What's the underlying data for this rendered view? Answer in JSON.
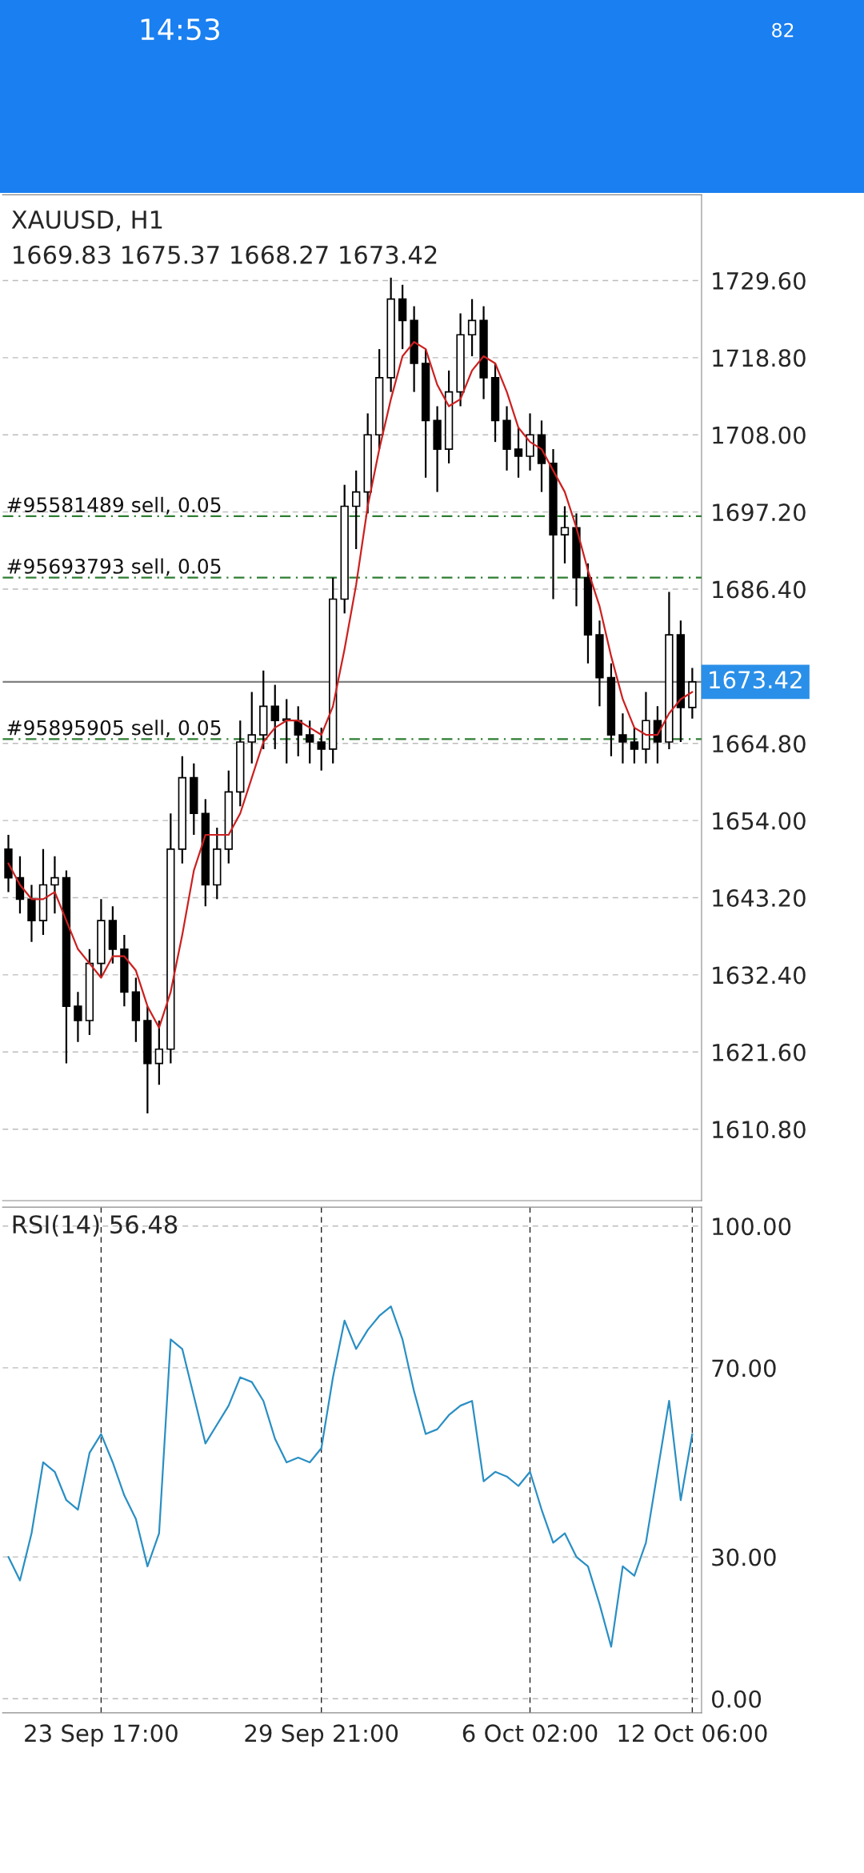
{
  "chart_data": [
    {
      "type": "candlestick",
      "title": "XAUUSD, H1",
      "subtitle": "1669.83 1675.37 1668.27 1673.42",
      "color": "#000000",
      "annotations": [
        "14:53",
        "82"
      ],
      "categories": [
        null,
        null,
        null,
        null,
        null,
        null,
        null,
        null,
        null,
        null,
        null,
        null,
        null,
        null,
        null,
        null,
        null,
        null,
        null,
        null,
        null,
        null,
        null,
        null,
        null,
        null,
        null,
        null,
        null,
        null,
        null,
        null,
        null,
        null,
        null,
        null,
        null,
        null,
        null,
        null,
        null,
        null,
        null,
        null,
        null,
        null,
        null,
        null,
        null,
        null,
        null,
        null,
        null,
        null,
        null,
        null,
        null,
        null,
        null,
        null
      ],
      "ohlc": [
        [
          1650,
          1652,
          1644,
          1646
        ],
        [
          1646,
          1649,
          1641,
          1643
        ],
        [
          1643,
          1645,
          1637,
          1640
        ],
        [
          1640,
          1650,
          1638,
          1645
        ],
        [
          1645,
          1649,
          1641,
          1646
        ],
        [
          1646,
          1647,
          1620,
          1628
        ],
        [
          1628,
          1630,
          1623,
          1626
        ],
        [
          1626,
          1636,
          1624,
          1634
        ],
        [
          1634,
          1643,
          1632,
          1640
        ],
        [
          1640,
          1642,
          1634,
          1636
        ],
        [
          1636,
          1638,
          1628,
          1630
        ],
        [
          1630,
          1632,
          1623,
          1626
        ],
        [
          1626,
          1628,
          1613,
          1620
        ],
        [
          1620,
          1626,
          1617,
          1622
        ],
        [
          1622,
          1655,
          1620,
          1650
        ],
        [
          1650,
          1663,
          1648,
          1660
        ],
        [
          1660,
          1662,
          1652,
          1655
        ],
        [
          1655,
          1657,
          1642,
          1645
        ],
        [
          1645,
          1653,
          1643,
          1650
        ],
        [
          1650,
          1661,
          1648,
          1658
        ],
        [
          1658,
          1668,
          1656,
          1665
        ],
        [
          1665,
          1672,
          1662,
          1666
        ],
        [
          1666,
          1675,
          1664,
          1670
        ],
        [
          1670,
          1673,
          1664,
          1668
        ],
        [
          1668,
          1671,
          1662,
          1668
        ],
        [
          1668,
          1670,
          1663,
          1666
        ],
        [
          1666,
          1668,
          1662,
          1665
        ],
        [
          1665,
          1667,
          1661,
          1664
        ],
        [
          1664,
          1688,
          1662,
          1685
        ],
        [
          1685,
          1701,
          1683,
          1698
        ],
        [
          1698,
          1703,
          1692,
          1700
        ],
        [
          1700,
          1711,
          1697,
          1708
        ],
        [
          1708,
          1720,
          1706,
          1716
        ],
        [
          1716,
          1730,
          1714,
          1727
        ],
        [
          1727,
          1729,
          1720,
          1724
        ],
        [
          1724,
          1726,
          1714,
          1718
        ],
        [
          1718,
          1720,
          1702,
          1710
        ],
        [
          1710,
          1712,
          1700,
          1706
        ],
        [
          1706,
          1717,
          1704,
          1714
        ],
        [
          1714,
          1725,
          1712,
          1722
        ],
        [
          1722,
          1727,
          1719,
          1724
        ],
        [
          1724,
          1726,
          1713,
          1716
        ],
        [
          1716,
          1718,
          1707,
          1710
        ],
        [
          1710,
          1712,
          1703,
          1706
        ],
        [
          1706,
          1709,
          1702,
          1705
        ],
        [
          1705,
          1711,
          1703,
          1708
        ],
        [
          1708,
          1710,
          1700,
          1704
        ],
        [
          1704,
          1706,
          1685,
          1694
        ],
        [
          1694,
          1698,
          1690,
          1695
        ],
        [
          1695,
          1697,
          1684,
          1688
        ],
        [
          1688,
          1690,
          1676,
          1680
        ],
        [
          1680,
          1682,
          1670,
          1674
        ],
        [
          1674,
          1676,
          1663,
          1666
        ],
        [
          1666,
          1669,
          1662,
          1665
        ],
        [
          1665,
          1667,
          1662,
          1664
        ],
        [
          1664,
          1672,
          1662,
          1668
        ],
        [
          1668,
          1670,
          1662,
          1665
        ],
        [
          1665,
          1686,
          1664,
          1680
        ],
        [
          1680,
          1682,
          1665,
          1669.83
        ],
        [
          1669.83,
          1675.37,
          1668.27,
          1673.42
        ]
      ],
      "series": [
        {
          "type": "line",
          "color": "#cc2020",
          "values": [
            1648,
            1645,
            1643,
            1643,
            1644,
            1640,
            1636,
            1634,
            1632,
            1635,
            1635,
            1633,
            1628,
            1625,
            1630,
            1638,
            1647,
            1652,
            1652,
            1652,
            1655,
            1660,
            1665,
            1667,
            1668,
            1668,
            1667,
            1666,
            1670,
            1678,
            1687,
            1698,
            1706,
            1713,
            1719,
            1721,
            1720,
            1715,
            1712,
            1713,
            1717,
            1719,
            1718,
            1714,
            1709,
            1707,
            1706,
            1703,
            1700,
            1695,
            1689,
            1684,
            1677,
            1671,
            1667,
            1666,
            1666,
            1669,
            1671,
            1672
          ]
        }
      ],
      "ref_lines": [
        {
          "axis": "y",
          "value": 1696.6,
          "label": "#95581489 sell, 0.05",
          "color": "#2e7d32",
          "line_style": "dashed"
        },
        {
          "axis": "y",
          "value": 1688,
          "label": "#95693793 sell, 0.05",
          "color": "#2e7d32",
          "line_style": "dashed"
        },
        {
          "axis": "y",
          "value": 1665.4,
          "label": "#95895905 sell, 0.05",
          "color": "#2e7d32",
          "line_style": "dashed"
        },
        {
          "axis": "y",
          "value": 1673.42,
          "label": "1673.42",
          "color": "#808080",
          "line_style": "solid"
        }
      ],
      "ylim": [
        1600.8,
        1741.6
      ],
      "yticks": [
        {
          "value": 1610.8,
          "label": "1610.80"
        },
        {
          "value": 1621.6,
          "label": "1621.60"
        },
        {
          "value": 1632.4,
          "label": "1632.40"
        },
        {
          "value": 1643.2,
          "label": "1643.20"
        },
        {
          "value": 1654,
          "label": "1654.00"
        },
        {
          "value": 1664.8,
          "label": "1664.80"
        },
        {
          "value": 1686.4,
          "label": "1686.40"
        },
        {
          "value": 1697.2,
          "label": "1697.20"
        },
        {
          "value": 1708,
          "label": "1708.00"
        },
        {
          "value": 1718.8,
          "label": "1718.80"
        },
        {
          "value": 1729.6,
          "label": "1729.60"
        }
      ],
      "grid": true
    },
    {
      "type": "line",
      "title": "RSI(14) 56.48",
      "categories": [
        null,
        null,
        null,
        null,
        null,
        null,
        null,
        null,
        "23 Sep 17:00",
        null,
        null,
        null,
        null,
        null,
        null,
        null,
        null,
        null,
        null,
        null,
        null,
        null,
        null,
        null,
        null,
        null,
        null,
        "29 Sep 21:00",
        null,
        null,
        null,
        null,
        null,
        null,
        null,
        null,
        null,
        null,
        null,
        null,
        null,
        null,
        null,
        null,
        null,
        "6 Oct 02:00",
        null,
        null,
        null,
        null,
        null,
        null,
        null,
        null,
        null,
        null,
        null,
        null,
        null,
        "12 Oct 06:00"
      ],
      "series": [
        {
          "color": "#2a8fc4",
          "values": [
            30,
            25,
            35,
            50,
            48,
            42,
            40,
            52,
            56,
            50,
            43,
            38,
            28,
            35,
            76,
            74,
            64,
            54,
            58,
            62,
            68,
            67,
            63,
            55,
            50,
            51,
            50,
            53,
            68,
            80,
            74,
            78,
            81,
            83,
            76,
            65,
            56,
            57,
            60,
            62,
            63,
            46,
            48,
            47,
            45,
            48,
            40,
            33,
            35,
            30,
            28,
            20,
            11,
            28,
            26,
            33,
            48,
            63,
            42,
            56
          ]
        }
      ],
      "ylim": [
        -3,
        104
      ],
      "yticks": [
        {
          "value": 0,
          "label": "0.00"
        },
        {
          "value": 30,
          "label": "30.00"
        },
        {
          "value": 70,
          "label": "70.00"
        },
        {
          "value": 100,
          "label": "100.00"
        }
      ],
      "grid": true
    }
  ]
}
